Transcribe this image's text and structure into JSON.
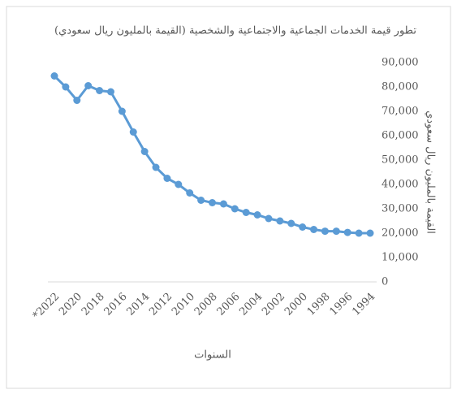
{
  "chart_data": {
    "type": "line",
    "title": "تطور قيمة الخدمات الجماعية والاجتماعية والشخصية (القيمة بالمليون ريال سعودي)",
    "x_label": "السنوات",
    "y_label": "القيمة بالمليون ريال سعودي",
    "categories": [
      "*2022",
      null,
      "2020",
      null,
      "2018",
      null,
      "2016",
      null,
      "2014",
      null,
      "2012",
      null,
      "2010",
      null,
      "2008",
      null,
      "2006",
      null,
      "2004",
      null,
      "2002",
      null,
      "2000",
      null,
      "1998",
      null,
      "1996",
      null,
      "1994"
    ],
    "series": [
      {
        "name": null,
        "color": "#5b9bd5",
        "values": [
          84500,
          80000,
          74500,
          80500,
          78500,
          78000,
          70000,
          61500,
          53500,
          47000,
          42500,
          40000,
          36500,
          33500,
          32500,
          32000,
          30000,
          28500,
          27500,
          26000,
          25000,
          24000,
          22500,
          21500,
          20800,
          20800,
          20300,
          20000,
          20000
        ]
      }
    ],
    "ylim": [
      0,
      90000
    ],
    "yticks": [
      0,
      {
        "value": 10000,
        "label": "10,000"
      },
      {
        "value": 20000,
        "label": "20,000"
      },
      {
        "value": 30000,
        "label": "30,000"
      },
      {
        "value": 40000,
        "label": "40,000"
      },
      {
        "value": 50000,
        "label": "50,000"
      },
      {
        "value": 60000,
        "label": "60,000"
      },
      {
        "value": 70000,
        "label": "70,000"
      },
      {
        "value": 80000,
        "label": "80,000"
      },
      {
        "value": 90000,
        "label": "90,000"
      }
    ],
    "y_axis_side": "right",
    "grid": false
  }
}
